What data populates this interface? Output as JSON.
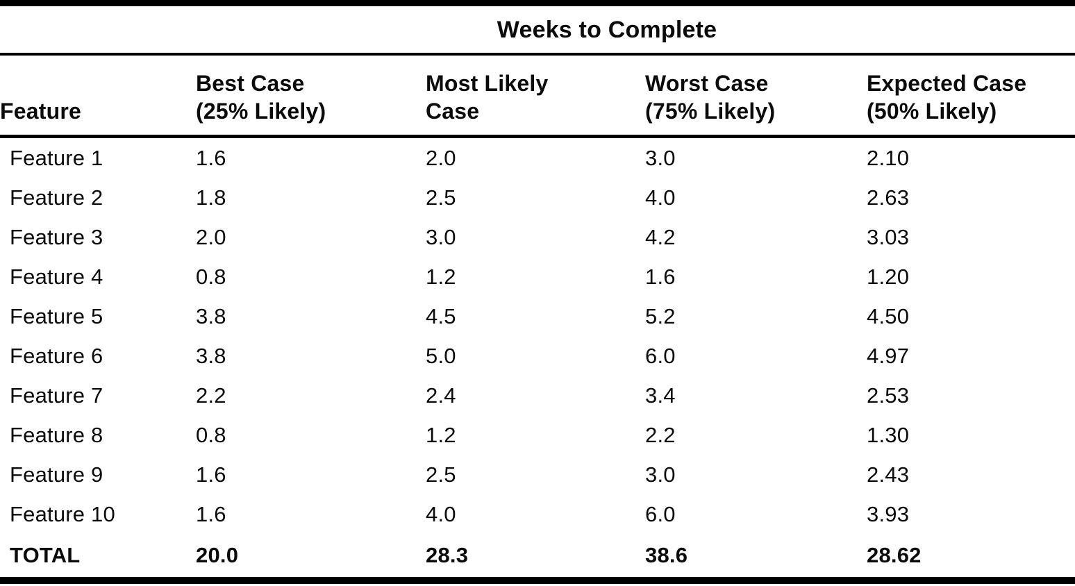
{
  "table": {
    "span_header": "Weeks to Complete",
    "columns": [
      {
        "label": "Feature"
      },
      {
        "label": "Best Case\n(25% Likely)"
      },
      {
        "label": "Most Likely\nCase"
      },
      {
        "label": "Worst Case\n(75% Likely)"
      },
      {
        "label": "Expected Case\n(50% Likely)"
      }
    ],
    "rows": [
      {
        "feature": "Feature 1",
        "best": "1.6",
        "most_likely": "2.0",
        "worst": "3.0",
        "expected": "2.10"
      },
      {
        "feature": "Feature 2",
        "best": "1.8",
        "most_likely": "2.5",
        "worst": "4.0",
        "expected": "2.63"
      },
      {
        "feature": "Feature 3",
        "best": "2.0",
        "most_likely": "3.0",
        "worst": "4.2",
        "expected": "3.03"
      },
      {
        "feature": "Feature 4",
        "best": "0.8",
        "most_likely": "1.2",
        "worst": "1.6",
        "expected": "1.20"
      },
      {
        "feature": "Feature 5",
        "best": "3.8",
        "most_likely": "4.5",
        "worst": "5.2",
        "expected": "4.50"
      },
      {
        "feature": "Feature 6",
        "best": "3.8",
        "most_likely": "5.0",
        "worst": "6.0",
        "expected": "4.97"
      },
      {
        "feature": "Feature 7",
        "best": "2.2",
        "most_likely": "2.4",
        "worst": "3.4",
        "expected": "2.53"
      },
      {
        "feature": "Feature 8",
        "best": "0.8",
        "most_likely": "1.2",
        "worst": "2.2",
        "expected": "1.30"
      },
      {
        "feature": "Feature 9",
        "best": "1.6",
        "most_likely": "2.5",
        "worst": "3.0",
        "expected": "2.43"
      },
      {
        "feature": "Feature 10",
        "best": "1.6",
        "most_likely": "4.0",
        "worst": "6.0",
        "expected": "3.93"
      }
    ],
    "total": {
      "feature": "TOTAL",
      "best": "20.0",
      "most_likely": "28.3",
      "worst": "38.6",
      "expected": "28.62"
    }
  }
}
